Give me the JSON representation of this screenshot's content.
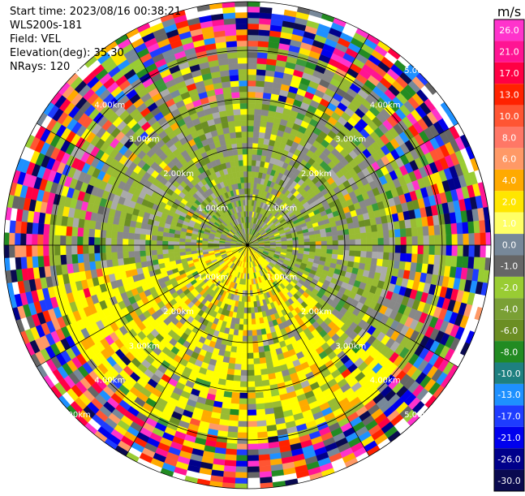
{
  "header": {
    "start_time": "Start time: 2023/08/16 00:38:21",
    "instrument": "WLS200s-181",
    "field": "Field: VEL",
    "elevation": "Elevation(deg): 35.30",
    "nrays": "NRays: 120"
  },
  "colorbar": {
    "unit": "m/s",
    "ticks": [
      "26.0",
      "21.0",
      "17.0",
      "13.0",
      "10.0",
      "8.0",
      "6.0",
      "4.0",
      "2.0",
      "1.0",
      "0.0",
      "-1.0",
      "-2.0",
      "-4.0",
      "-6.0",
      "-8.0",
      "-10.0",
      "-13.0",
      "-17.0",
      "-21.0",
      "-26.0",
      "-30.0"
    ],
    "colors": [
      "#ff33cc",
      "#ff1493",
      "#ff0044",
      "#ff2200",
      "#ff5533",
      "#ff7766",
      "#ff9966",
      "#ffaa00",
      "#ffe600",
      "#ffff66",
      "#778899",
      "#666666",
      "#99cc33",
      "#7aa035",
      "#6b8e23",
      "#228b22",
      "#1e8080",
      "#1e90ff",
      "#1e3cff",
      "#0000ee",
      "#00008b",
      "#0a0a50"
    ]
  },
  "chart_data": {
    "type": "ppi_radar",
    "field": "VEL",
    "units": "m/s",
    "n_rays": 120,
    "range_rings_km": [
      1.0,
      2.0,
      3.0,
      4.0,
      5.0
    ],
    "range_ring_labels": [
      "1.00km",
      "2.00km",
      "3.00km",
      "4.00km",
      "5.00km"
    ],
    "value_range": [
      -30.0,
      26.0
    ]
  }
}
